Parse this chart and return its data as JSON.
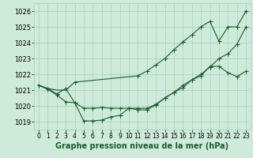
{
  "background_color": "#ceeadb",
  "grid_color": "#aacfbe",
  "line_color": "#1a5c2a",
  "line1_no_marker": {
    "x": [
      0,
      1,
      2,
      3,
      4
    ],
    "y": [
      1021.3,
      1021.1,
      1021.0,
      1021.0,
      1021.5
    ]
  },
  "line1_marker": {
    "x": [
      0,
      1,
      2,
      3,
      4,
      11,
      12,
      13,
      14,
      15,
      16,
      17,
      18,
      19,
      20,
      21,
      22,
      23
    ],
    "y": [
      1021.3,
      1021.1,
      1021.0,
      1021.0,
      1021.5,
      1021.9,
      1022.2,
      1022.6,
      1023.0,
      1023.55,
      1024.05,
      1024.5,
      1025.0,
      1025.35,
      1024.1,
      1025.0,
      1025.0,
      1026.0
    ]
  },
  "line2": {
    "x": [
      0,
      1,
      2,
      3,
      4,
      5,
      6,
      7,
      8,
      9,
      10,
      11,
      12,
      13,
      14,
      15,
      16,
      17,
      18,
      19,
      20,
      21,
      22,
      23
    ],
    "y": [
      1021.3,
      1021.1,
      1020.75,
      1021.1,
      1020.2,
      1019.85,
      1019.85,
      1019.9,
      1019.85,
      1019.85,
      1019.85,
      1019.85,
      1019.85,
      1020.1,
      1020.5,
      1020.85,
      1021.3,
      1021.65,
      1022.0,
      1022.45,
      1023.0,
      1023.3,
      1023.9,
      1025.0
    ]
  },
  "line3": {
    "x": [
      0,
      1,
      2,
      3,
      4,
      5,
      6,
      7,
      8,
      9,
      10,
      11,
      12,
      13,
      14,
      15,
      16,
      17,
      18,
      19,
      20,
      21,
      22,
      23
    ],
    "y": [
      1021.3,
      1021.05,
      1020.7,
      1020.25,
      1020.2,
      1019.05,
      1019.05,
      1019.1,
      1019.3,
      1019.4,
      1019.85,
      1019.75,
      1019.75,
      1020.05,
      1020.5,
      1020.85,
      1021.15,
      1021.65,
      1021.9,
      1022.5,
      1022.5,
      1022.1,
      1021.85,
      1022.2
    ]
  },
  "yticks": [
    1019,
    1020,
    1021,
    1022,
    1023,
    1024,
    1025,
    1026
  ],
  "xticks": [
    0,
    1,
    2,
    3,
    4,
    5,
    6,
    7,
    8,
    9,
    10,
    11,
    12,
    13,
    14,
    15,
    16,
    17,
    18,
    19,
    20,
    21,
    22,
    23
  ],
  "ylim": [
    1018.5,
    1026.5
  ],
  "xlim": [
    -0.5,
    23.5
  ],
  "xlabel": "Graphe pression niveau de la mer (hPa)",
  "xlabel_fontsize": 7.0,
  "tick_fontsize": 5.5,
  "ytick_fontsize": 6.0,
  "linewidth": 0.8,
  "markersize": 2.0
}
